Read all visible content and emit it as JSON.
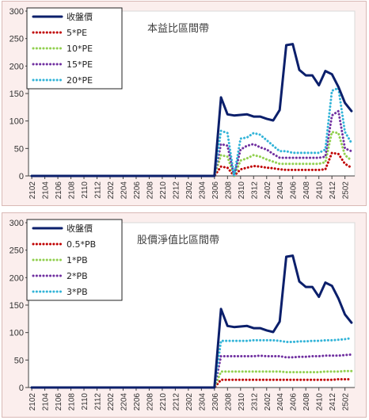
{
  "colors": {
    "close": "#0b1f6b",
    "low": "#c00000",
    "mid": "#92d050",
    "high": "#7030a0",
    "top": "#33b4d8",
    "panel_bg": "#fbeeed",
    "axis": "#404040"
  },
  "chart_data": [
    {
      "type": "line",
      "title": "本益比區間帶",
      "ylim": [
        0,
        300
      ],
      "yticks": [
        0,
        50,
        100,
        150,
        200,
        250,
        300
      ],
      "x_tick_labels": [
        "2102",
        "2104",
        "2106",
        "2108",
        "2110",
        "2112",
        "2202",
        "2204",
        "2206",
        "2208",
        "2210",
        "2212",
        "2302",
        "2304",
        "2306",
        "2308",
        "2310",
        "2312",
        "2402",
        "2404",
        "2406",
        "2408",
        "2410",
        "2412",
        "2502"
      ],
      "grid": false,
      "legend_placement": "top-left",
      "n_points": 50,
      "series": [
        {
          "name": "收盤價",
          "color_key": "close",
          "style": "solid",
          "values": [
            0,
            0,
            0,
            0,
            0,
            0,
            0,
            0,
            0,
            0,
            0,
            0,
            0,
            0,
            0,
            0,
            0,
            0,
            0,
            0,
            0,
            0,
            0,
            0,
            0,
            0,
            0,
            0,
            0,
            143,
            112,
            110,
            111,
            112,
            108,
            108,
            104,
            101,
            120,
            238,
            240,
            193,
            183,
            183,
            165,
            191,
            185,
            162,
            133,
            118
          ]
        },
        {
          "name": "5*PE",
          "color_key": "low",
          "style": "dotted",
          "values": [
            0,
            0,
            0,
            0,
            0,
            0,
            0,
            0,
            0,
            0,
            0,
            0,
            0,
            0,
            0,
            0,
            0,
            0,
            0,
            0,
            0,
            0,
            0,
            0,
            0,
            0,
            0,
            0,
            0,
            17,
            15,
            0,
            12,
            15,
            18,
            17,
            15,
            14,
            12,
            11,
            11,
            11,
            11,
            11,
            11,
            12,
            42,
            40,
            22,
            15
          ]
        },
        {
          "name": "10*PE",
          "color_key": "mid",
          "style": "dotted",
          "values": [
            0,
            0,
            0,
            0,
            0,
            0,
            0,
            0,
            0,
            0,
            0,
            0,
            0,
            0,
            0,
            0,
            0,
            0,
            0,
            0,
            0,
            0,
            0,
            0,
            0,
            0,
            0,
            0,
            0,
            38,
            35,
            0,
            28,
            32,
            38,
            35,
            30,
            26,
            22,
            22,
            22,
            22,
            22,
            22,
            22,
            25,
            80,
            78,
            38,
            28
          ]
        },
        {
          "name": "15*PE",
          "color_key": "high",
          "style": "dotted",
          "values": [
            0,
            0,
            0,
            0,
            0,
            0,
            0,
            0,
            0,
            0,
            0,
            0,
            0,
            0,
            0,
            0,
            0,
            0,
            0,
            0,
            0,
            0,
            0,
            0,
            0,
            0,
            0,
            0,
            0,
            58,
            55,
            0,
            48,
            55,
            58,
            52,
            48,
            40,
            33,
            33,
            33,
            33,
            33,
            33,
            33,
            35,
            110,
            118,
            50,
            45
          ]
        },
        {
          "name": "20*PE",
          "color_key": "top",
          "style": "dotted",
          "values": [
            0,
            0,
            0,
            0,
            0,
            0,
            0,
            0,
            0,
            0,
            0,
            0,
            0,
            0,
            0,
            0,
            0,
            0,
            0,
            0,
            0,
            0,
            0,
            0,
            0,
            0,
            0,
            0,
            0,
            82,
            78,
            0,
            68,
            70,
            78,
            75,
            65,
            55,
            45,
            45,
            42,
            42,
            42,
            42,
            42,
            48,
            155,
            160,
            80,
            60
          ]
        }
      ]
    },
    {
      "type": "line",
      "title": "股價淨值比區間帶",
      "ylim": [
        0,
        300
      ],
      "yticks": [
        0,
        50,
        100,
        150,
        200,
        250,
        300
      ],
      "x_tick_labels": [
        "2102",
        "2104",
        "2106",
        "2108",
        "2110",
        "2112",
        "2202",
        "2204",
        "2206",
        "2208",
        "2210",
        "2212",
        "2302",
        "2304",
        "2306",
        "2308",
        "2310",
        "2312",
        "2402",
        "2404",
        "2406",
        "2408",
        "2410",
        "2412",
        "2502"
      ],
      "grid": false,
      "legend_placement": "top-left",
      "n_points": 50,
      "series": [
        {
          "name": "收盤價",
          "color_key": "close",
          "style": "solid",
          "values": [
            0,
            0,
            0,
            0,
            0,
            0,
            0,
            0,
            0,
            0,
            0,
            0,
            0,
            0,
            0,
            0,
            0,
            0,
            0,
            0,
            0,
            0,
            0,
            0,
            0,
            0,
            0,
            0,
            0,
            143,
            112,
            110,
            111,
            112,
            108,
            108,
            104,
            101,
            120,
            238,
            240,
            193,
            183,
            183,
            165,
            191,
            185,
            162,
            133,
            118
          ]
        },
        {
          "name": "0.5*PB",
          "color_key": "low",
          "style": "dotted",
          "values": [
            0,
            0,
            0,
            0,
            0,
            0,
            0,
            0,
            0,
            0,
            0,
            0,
            0,
            0,
            0,
            0,
            0,
            0,
            0,
            0,
            0,
            0,
            0,
            0,
            0,
            0,
            0,
            0,
            0,
            14,
            14,
            14,
            14,
            14,
            14,
            14,
            14,
            14,
            14,
            14,
            14,
            14,
            14,
            14,
            14,
            14,
            14,
            15,
            15,
            15
          ]
        },
        {
          "name": "1*PB",
          "color_key": "mid",
          "style": "dotted",
          "values": [
            0,
            0,
            0,
            0,
            0,
            0,
            0,
            0,
            0,
            0,
            0,
            0,
            0,
            0,
            0,
            0,
            0,
            0,
            0,
            0,
            0,
            0,
            0,
            0,
            0,
            0,
            0,
            0,
            0,
            29,
            29,
            29,
            29,
            29,
            29,
            29,
            29,
            29,
            29,
            28,
            28,
            28,
            28,
            28,
            28,
            29,
            29,
            29,
            30,
            30
          ]
        },
        {
          "name": "2*PB",
          "color_key": "high",
          "style": "dotted",
          "values": [
            0,
            0,
            0,
            0,
            0,
            0,
            0,
            0,
            0,
            0,
            0,
            0,
            0,
            0,
            0,
            0,
            0,
            0,
            0,
            0,
            0,
            0,
            0,
            0,
            0,
            0,
            0,
            0,
            0,
            57,
            57,
            57,
            57,
            57,
            57,
            58,
            57,
            57,
            57,
            55,
            55,
            56,
            56,
            57,
            57,
            58,
            58,
            58,
            59,
            60
          ]
        },
        {
          "name": "3*PB",
          "color_key": "top",
          "style": "dotted",
          "values": [
            0,
            0,
            0,
            0,
            0,
            0,
            0,
            0,
            0,
            0,
            0,
            0,
            0,
            0,
            0,
            0,
            0,
            0,
            0,
            0,
            0,
            0,
            0,
            0,
            0,
            0,
            0,
            0,
            0,
            85,
            85,
            85,
            85,
            85,
            86,
            86,
            86,
            86,
            85,
            83,
            83,
            84,
            84,
            85,
            85,
            86,
            86,
            87,
            88,
            90
          ]
        }
      ]
    }
  ]
}
